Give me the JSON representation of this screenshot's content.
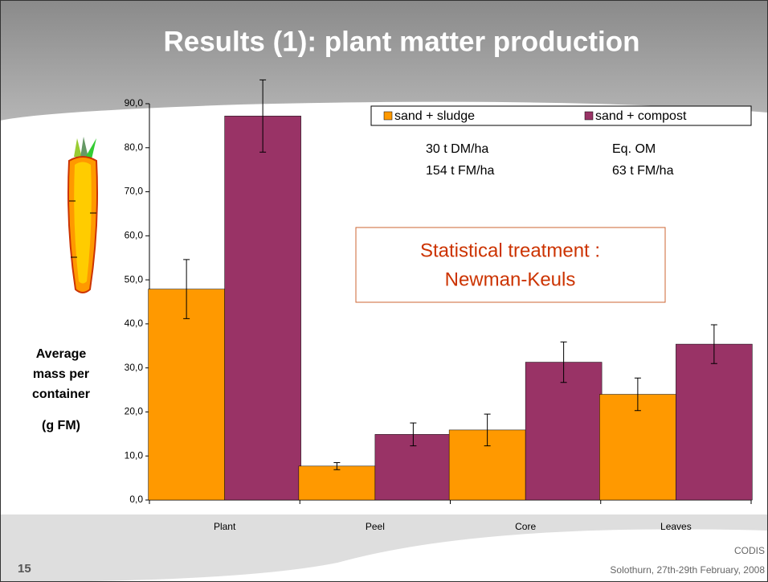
{
  "slide": {
    "title": "Results (1): plant matter production",
    "number": "15",
    "footer_org": "CODIS",
    "footer_event": "Solothurn, 27th-29th February, 2008"
  },
  "chart_data": {
    "type": "bar",
    "categories": [
      "Plant",
      "Peel",
      "Core",
      "Leaves"
    ],
    "series": [
      {
        "name": "sand + sludge",
        "color": "#ff9900",
        "values": [
          47.9,
          7.7,
          15.9,
          24.0
        ],
        "errors": [
          6.7,
          0.8,
          3.6,
          3.7
        ]
      },
      {
        "name": "sand + compost",
        "color": "#993366",
        "values": [
          87.2,
          14.9,
          31.3,
          35.4
        ],
        "errors": [
          8.2,
          2.6,
          4.6,
          4.4
        ]
      }
    ],
    "ylim": [
      0,
      90
    ],
    "yticks": [
      {
        "value": 0,
        "label": "0,0"
      },
      {
        "value": 10,
        "label": "10,0"
      },
      {
        "value": 20,
        "label": "20,0"
      },
      {
        "value": 30,
        "label": "30,0"
      },
      {
        "value": 40,
        "label": "40,0"
      },
      {
        "value": 50,
        "label": "50,0"
      },
      {
        "value": 60,
        "label": "60,0"
      },
      {
        "value": 70,
        "label": "70,0"
      },
      {
        "value": 80,
        "label": "80,0"
      },
      {
        "value": 90,
        "label": "90,0"
      }
    ],
    "ylabel": [
      "Average",
      "mass per",
      "container",
      "(g FM)"
    ],
    "annotations": [
      "30 t DM/ha",
      "154 t FM/ha",
      "Eq. OM",
      "63 t FM/ha"
    ],
    "stat_box": [
      "Statistical treatment :",
      "Newman-Keuls"
    ],
    "legend": "top-right"
  }
}
